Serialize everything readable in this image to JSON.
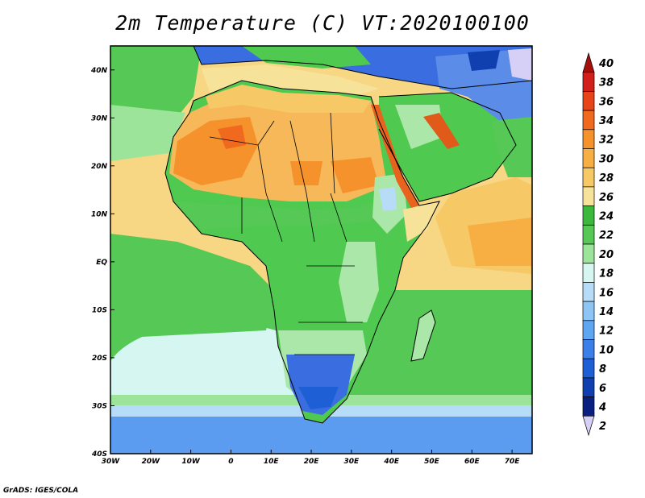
{
  "title": "2m Temperature (C) VT:2020100100",
  "credit": "GrADS: IGES/COLA",
  "map": {
    "lon_range": [
      -30,
      75
    ],
    "lat_range": [
      -40,
      45
    ],
    "lon_ticks": [
      "30W",
      "20W",
      "10W",
      "0",
      "10E",
      "20E",
      "30E",
      "40E",
      "50E",
      "60E",
      "70E"
    ],
    "lat_ticks": [
      "40S",
      "30S",
      "20S",
      "10S",
      "EQ",
      "10N",
      "20N",
      "30N",
      "40N"
    ],
    "ocean_color": "#f7d684",
    "regions": {
      "north_africa": "#f5a445",
      "sahel": "#f7b85a",
      "central_africa": "#4fc94f",
      "east_highlands": "#aae7a8",
      "south_africa": "#3a6ee0",
      "mediterranean": "#8ad98a",
      "southern_ocean": "#5c9cf0",
      "red_sea": "#e8641e",
      "persian_gulf": "#e05a1a",
      "iran_highlands": "#5a8ce8"
    }
  },
  "colorbar": {
    "labels": [
      "40",
      "38",
      "36",
      "34",
      "32",
      "30",
      "28",
      "26",
      "24",
      "22",
      "20",
      "18",
      "16",
      "14",
      "12",
      "10",
      "8",
      "6",
      "4",
      "2"
    ],
    "colors": [
      "#a50f0b",
      "#d21f1b",
      "#e8441a",
      "#f0691e",
      "#f5922c",
      "#f7ae42",
      "#f6c866",
      "#f7e29a",
      "#3cb83c",
      "#55c855",
      "#9de49b",
      "#d6f6f2",
      "#b6dcf8",
      "#8ec5f5",
      "#5ea5f2",
      "#3b7fe8",
      "#1f5fd6",
      "#1040b0",
      "#0a2080",
      "#d6d0f6"
    ]
  }
}
